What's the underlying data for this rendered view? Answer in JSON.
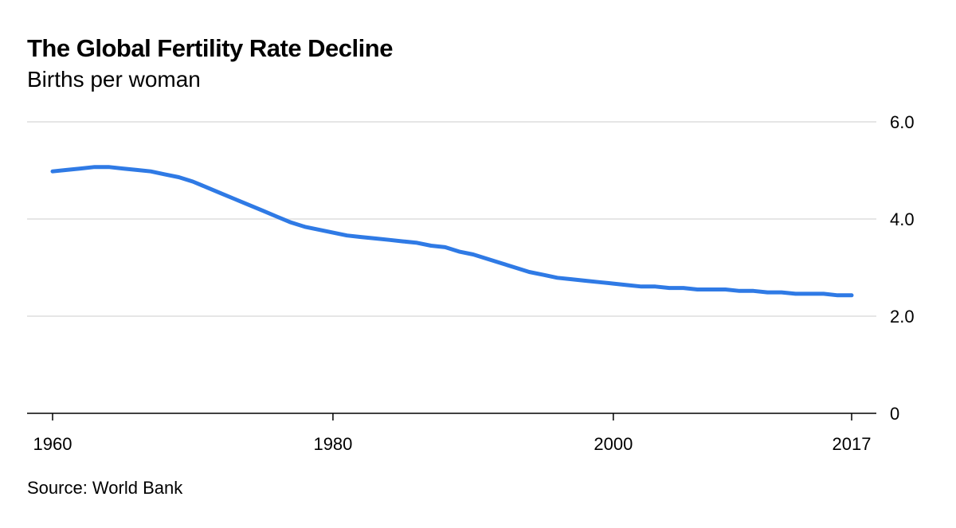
{
  "header": {
    "title": "The Global Fertility Rate Decline",
    "subtitle": "Births per woman"
  },
  "footer": {
    "source": "Source: World Bank"
  },
  "colors": {
    "line": "#2f7ae5",
    "grid": "#e6e6e6",
    "axis": "#000000"
  },
  "chart_data": {
    "type": "line",
    "title": "The Global Fertility Rate Decline",
    "subtitle": "Births per woman",
    "xlabel": "",
    "ylabel": "",
    "xlim": [
      1960,
      2017
    ],
    "ylim": [
      0,
      6
    ],
    "x_ticks": [
      1960,
      1980,
      2000,
      2017
    ],
    "x_tick_labels": [
      "1960",
      "1980",
      "2000",
      "2017"
    ],
    "y_ticks": [
      0,
      2,
      4,
      6
    ],
    "y_tick_labels": [
      "0",
      "2.0",
      "4.0",
      "6.0"
    ],
    "y_axis_side": "right",
    "grid": true,
    "legend": "none",
    "series": [
      {
        "x": [
          1960,
          1961,
          1962,
          1963,
          1964,
          1965,
          1966,
          1967,
          1968,
          1969,
          1970,
          1971,
          1972,
          1973,
          1974,
          1975,
          1976,
          1977,
          1978,
          1979,
          1980,
          1981,
          1982,
          1983,
          1984,
          1985,
          1986,
          1987,
          1988,
          1989,
          1990,
          1991,
          1992,
          1993,
          1994,
          1995,
          1996,
          1997,
          1998,
          1999,
          2000,
          2001,
          2002,
          2003,
          2004,
          2005,
          2006,
          2007,
          2008,
          2009,
          2010,
          2011,
          2012,
          2013,
          2014,
          2015,
          2016,
          2017
        ],
        "values": [
          4.98,
          5.01,
          5.04,
          5.07,
          5.07,
          5.04,
          5.01,
          4.98,
          4.92,
          4.86,
          4.77,
          4.65,
          4.53,
          4.41,
          4.29,
          4.17,
          4.05,
          3.93,
          3.84,
          3.78,
          3.72,
          3.66,
          3.63,
          3.6,
          3.57,
          3.54,
          3.51,
          3.45,
          3.42,
          3.33,
          3.27,
          3.18,
          3.09,
          3.0,
          2.91,
          2.85,
          2.79,
          2.76,
          2.73,
          2.7,
          2.67,
          2.64,
          2.61,
          2.61,
          2.58,
          2.58,
          2.55,
          2.55,
          2.55,
          2.52,
          2.52,
          2.49,
          2.49,
          2.46,
          2.46,
          2.46,
          2.43,
          2.43
        ]
      }
    ],
    "source": "Source: World Bank"
  }
}
